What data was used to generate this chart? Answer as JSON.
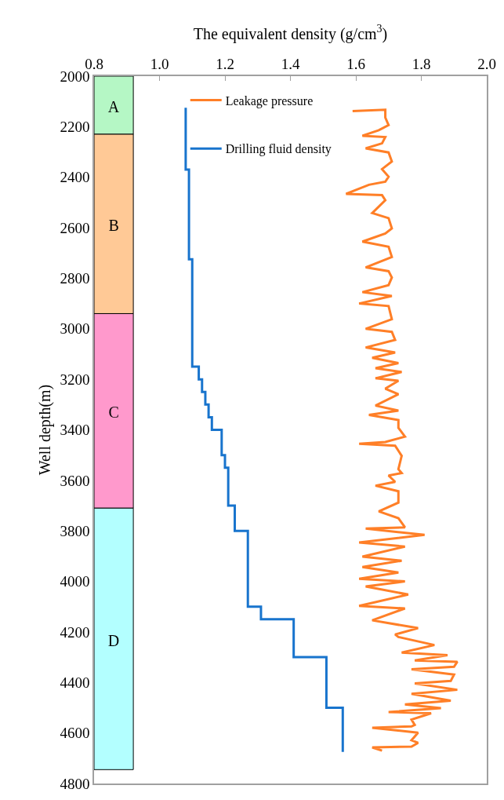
{
  "chart_data": {
    "type": "line",
    "orientation": "horizontal",
    "xlabel": "The equivalent density (g/cm$^{3}$)",
    "ylabel": "Well depth(m)",
    "xlim": [
      0.8,
      2.0
    ],
    "xticks": [
      0.8,
      {
        "value": 1,
        "label": "1.0"
      },
      1.2,
      1.4,
      1.6,
      1.8,
      {
        "value": 2,
        "label": "2.0"
      }
    ],
    "ylim": [
      4800,
      2000
    ],
    "yticks": [
      2000,
      2200,
      2400,
      2600,
      2800,
      3000,
      3200,
      3400,
      3600,
      3800,
      4000,
      4200,
      4400,
      4600,
      4800
    ],
    "grid": false,
    "legend": "top left",
    "line_style": "solid",
    "marker": "none",
    "bands": [
      {
        "axis": "y",
        "from": 2000,
        "to": 2230,
        "label": "A",
        "color": "#b5f7c5"
      },
      {
        "axis": "y",
        "from": 2230,
        "to": 2940,
        "label": "B",
        "color": "#ffc996"
      },
      {
        "axis": "y",
        "from": 2940,
        "to": 3710,
        "label": "C",
        "color": "#ff99cc"
      },
      {
        "axis": "y",
        "from": 3710,
        "to": 4745,
        "label": "D",
        "color": "#b3ffff"
      }
    ],
    "series": [
      {
        "name": "Leakage pressure",
        "color": "#ff7f27",
        "x": [
          2138,
          2133,
          2164,
          2194,
          2214,
          2236,
          2241,
          2266,
          2286,
          2302,
          2338,
          2368,
          2398,
          2418,
          2430,
          2466,
          2471,
          2491,
          2542,
          2562,
          2603,
          2623,
          2655,
          2675,
          2716,
          2757,
          2772,
          2797,
          2827,
          2855,
          2870,
          2900,
          2910,
          2962,
          3000,
          3012,
          3044,
          3074,
          3094,
          3115,
          3136,
          3156,
          3171,
          3196,
          3206,
          3237,
          3259,
          3304,
          3324,
          3341,
          3361,
          3392,
          3427,
          3448,
          3455,
          3463,
          3503,
          3556,
          3571,
          3581,
          3606,
          3621,
          3643,
          3688,
          3723,
          3750,
          3786,
          3791,
          3816,
          3846,
          3862,
          3902,
          3918,
          3943,
          3965,
          3990,
          4000,
          4020,
          4052,
          4097,
          4107,
          4154,
          4185,
          4210,
          4220,
          4252,
          4282,
          4292,
          4313,
          4318,
          4338,
          4348,
          4369,
          4394,
          4404,
          4429,
          4445,
          4472,
          4487,
          4502,
          4517,
          4522,
          4547,
          4568,
          4574,
          4579,
          4599,
          4629,
          4639,
          4654,
          4657,
          4670
        ],
        "values": [
          1.59,
          1.69,
          1.69,
          1.7,
          1.67,
          1.62,
          1.69,
          1.68,
          1.63,
          1.7,
          1.71,
          1.68,
          1.7,
          1.69,
          1.64,
          1.57,
          1.68,
          1.69,
          1.65,
          1.7,
          1.71,
          1.69,
          1.62,
          1.7,
          1.71,
          1.63,
          1.7,
          1.71,
          1.7,
          1.62,
          1.71,
          1.61,
          1.7,
          1.71,
          1.63,
          1.71,
          1.72,
          1.63,
          1.72,
          1.65,
          1.73,
          1.66,
          1.74,
          1.66,
          1.73,
          1.69,
          1.73,
          1.66,
          1.73,
          1.64,
          1.73,
          1.73,
          1.75,
          1.69,
          1.61,
          1.72,
          1.74,
          1.73,
          1.74,
          1.7,
          1.72,
          1.66,
          1.73,
          1.73,
          1.67,
          1.73,
          1.75,
          1.63,
          1.81,
          1.61,
          1.75,
          1.62,
          1.74,
          1.62,
          1.73,
          1.61,
          1.75,
          1.63,
          1.76,
          1.61,
          1.75,
          1.65,
          1.79,
          1.72,
          1.73,
          1.84,
          1.74,
          1.88,
          1.78,
          1.91,
          1.9,
          1.77,
          1.9,
          1.89,
          1.78,
          1.91,
          1.77,
          1.89,
          1.75,
          1.86,
          1.7,
          1.83,
          1.77,
          1.78,
          1.77,
          1.65,
          1.79,
          1.77,
          1.79,
          1.77,
          1.65,
          1.68
        ]
      },
      {
        "name": "Drilling fluid density",
        "type": "step",
        "color": "#1874cd",
        "x": [
          2125,
          2370,
          2725,
          3150,
          3200,
          3250,
          3300,
          3350,
          3400,
          3500,
          3550,
          3700,
          3800,
          4100,
          4150,
          4300,
          4500,
          4675
        ],
        "values": [
          1.08,
          1.09,
          1.1,
          1.12,
          1.13,
          1.14,
          1.15,
          1.16,
          1.19,
          1.2,
          1.21,
          1.23,
          1.27,
          1.31,
          1.41,
          1.51,
          1.56,
          1.56
        ]
      }
    ]
  }
}
